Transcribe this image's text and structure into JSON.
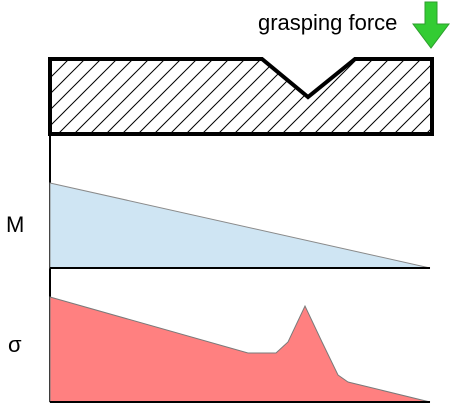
{
  "labels": {
    "force": "grasping force",
    "moment": "M",
    "stress": "σ"
  },
  "colors": {
    "arrow": "#33cc33",
    "moment_fill": "#cfe5f3",
    "moment_edge": "#8a8a8a",
    "stress_fill": "#ff8080",
    "stress_edge": "#7a7a7a",
    "outline": "#000000"
  },
  "icons": {
    "force_arrow": "down-arrow-icon"
  }
}
